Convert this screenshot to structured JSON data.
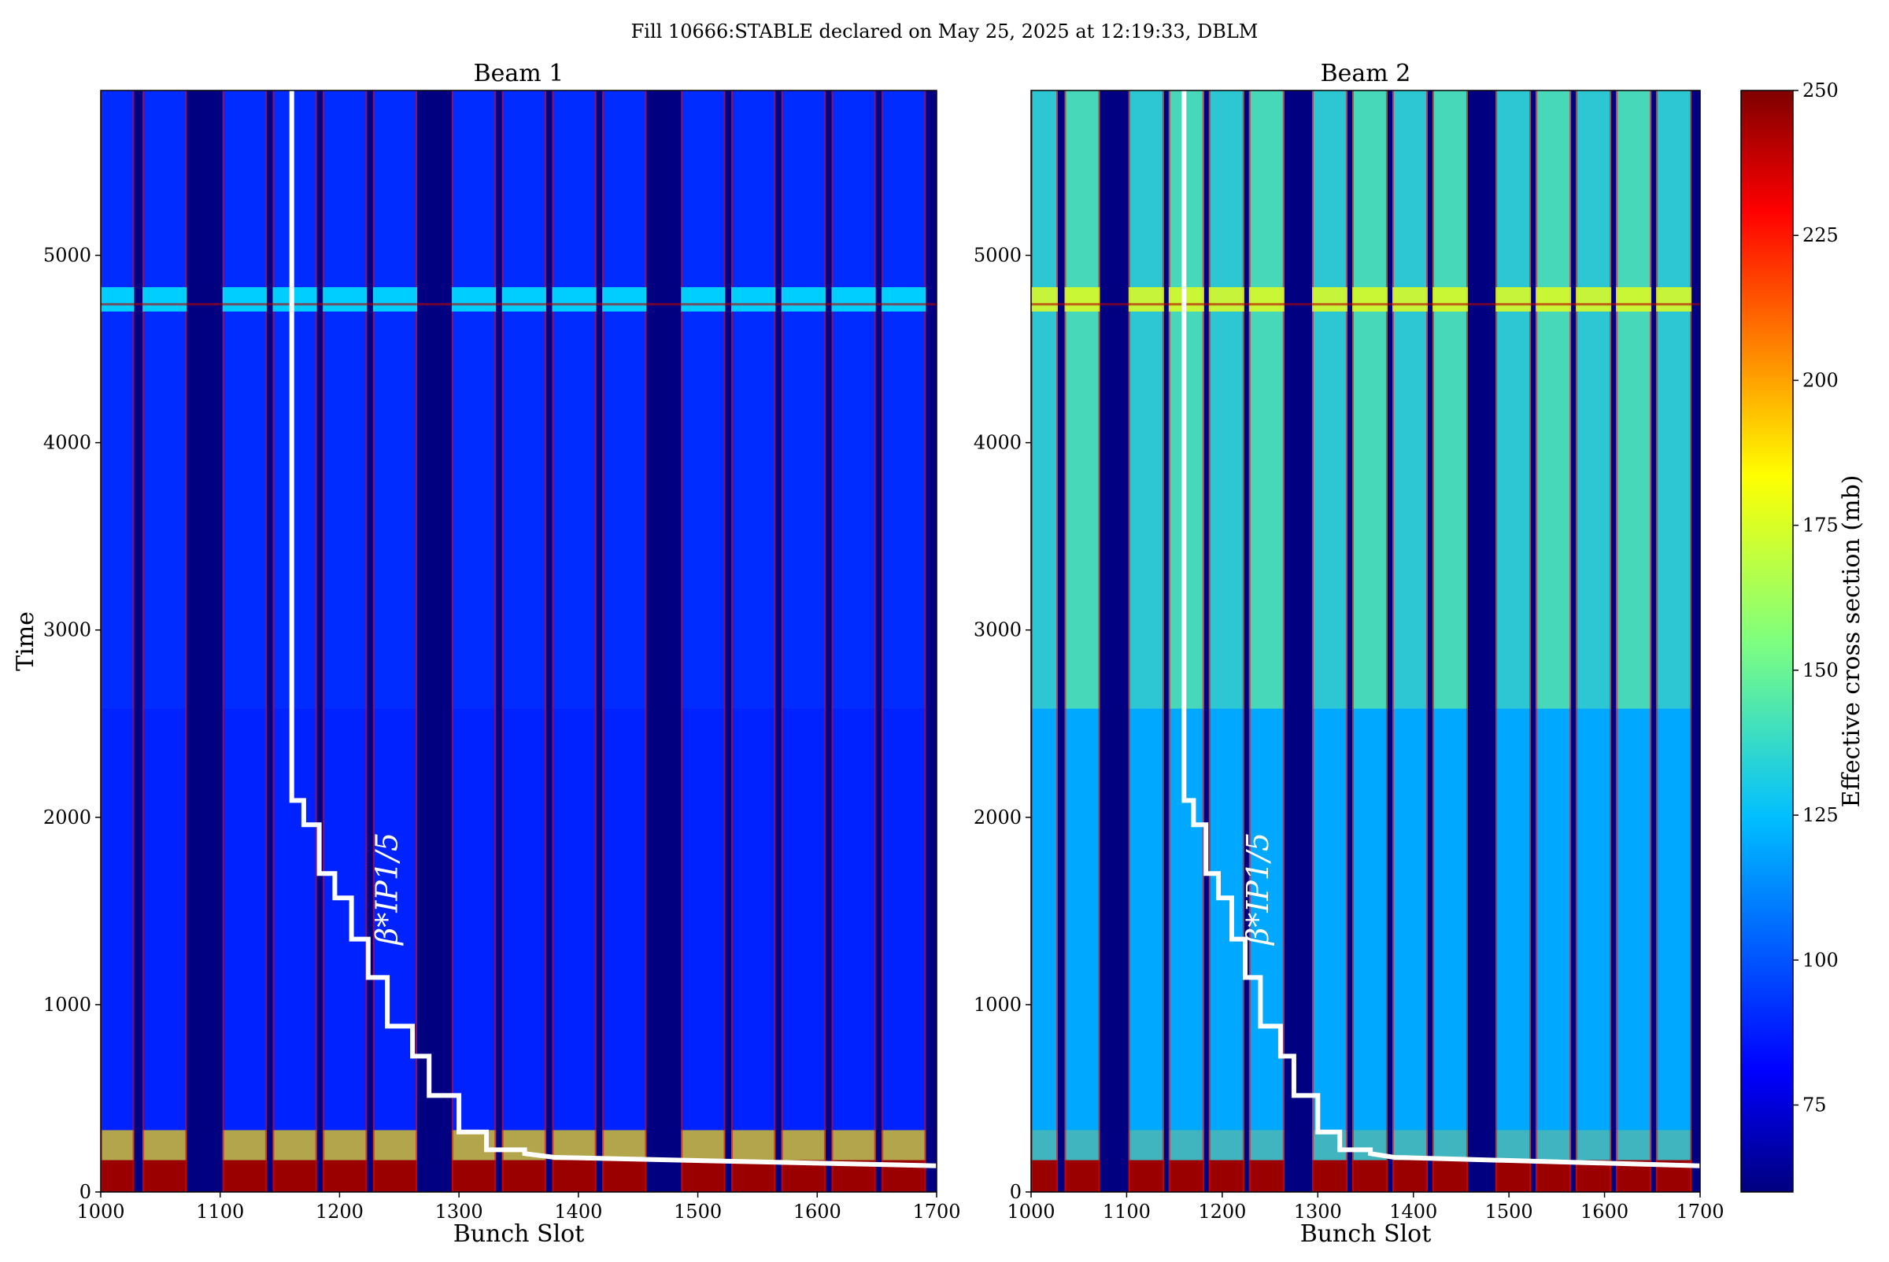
{
  "figure": {
    "suptitle": "Fill 10666:STABLE declared on May 25, 2025 at 12:19:33, DBLM"
  },
  "colorbar": {
    "label": "Effective cross section (mb)",
    "range": [
      60,
      250
    ],
    "ticks": [
      75,
      100,
      125,
      150,
      175,
      200,
      225,
      250
    ],
    "colormap": "jet"
  },
  "chart_data": [
    {
      "type": "heatmap",
      "title": "Beam 1",
      "xlabel": "Bunch Slot",
      "ylabel": "Time",
      "xlim": [
        1000,
        1700
      ],
      "ylim": [
        0,
        5880
      ],
      "xticks": [
        1000,
        1100,
        1200,
        1300,
        1400,
        1500,
        1600,
        1700
      ],
      "yticks": [
        0,
        1000,
        2000,
        3000,
        4000,
        5000
      ],
      "bunch_trains": [
        [
          1000,
          1028
        ],
        [
          1035,
          1072
        ],
        [
          1102,
          1139
        ],
        [
          1144,
          1181
        ],
        [
          1186,
          1223
        ],
        [
          1228,
          1265
        ],
        [
          1294,
          1331
        ],
        [
          1336,
          1373
        ],
        [
          1378,
          1415
        ],
        [
          1420,
          1457
        ],
        [
          1486,
          1523
        ],
        [
          1528,
          1565
        ],
        [
          1570,
          1607
        ],
        [
          1612,
          1649
        ],
        [
          1654,
          1691
        ]
      ],
      "typical_cross_section_mb": 90,
      "annotation": "β*IP1/5",
      "beta_star_curve": {
        "x": [
          1160,
          1160,
          1170,
          1170,
          1183,
          1183,
          1196,
          1196,
          1210,
          1210,
          1224,
          1224,
          1240,
          1240,
          1261,
          1261,
          1275,
          1275,
          1300,
          1300,
          1323,
          1323,
          1355,
          1355,
          1380,
          1700
        ],
        "y": [
          5880,
          2090,
          2090,
          1960,
          1960,
          1700,
          1700,
          1570,
          1570,
          1350,
          1350,
          1145,
          1145,
          885,
          885,
          725,
          725,
          515,
          515,
          320,
          320,
          225,
          225,
          205,
          185,
          140
        ]
      }
    },
    {
      "type": "heatmap",
      "title": "Beam 2",
      "xlabel": "Bunch Slot",
      "ylabel": "",
      "xlim": [
        1000,
        1700
      ],
      "ylim": [
        0,
        5880
      ],
      "xticks": [
        1000,
        1100,
        1200,
        1300,
        1400,
        1500,
        1600,
        1700
      ],
      "yticks": [
        0,
        1000,
        2000,
        3000,
        4000,
        5000
      ],
      "bunch_trains": [
        [
          1000,
          1028
        ],
        [
          1035,
          1072
        ],
        [
          1102,
          1139
        ],
        [
          1144,
          1181
        ],
        [
          1186,
          1223
        ],
        [
          1228,
          1265
        ],
        [
          1294,
          1331
        ],
        [
          1336,
          1373
        ],
        [
          1378,
          1415
        ],
        [
          1420,
          1457
        ],
        [
          1486,
          1523
        ],
        [
          1528,
          1565
        ],
        [
          1570,
          1607
        ],
        [
          1612,
          1649
        ],
        [
          1654,
          1691
        ]
      ],
      "typical_cross_section_mb": 115,
      "annotation": "β*IP1/5",
      "beta_star_curve": {
        "x": [
          1160,
          1160,
          1170,
          1170,
          1183,
          1183,
          1196,
          1196,
          1210,
          1210,
          1224,
          1224,
          1240,
          1240,
          1261,
          1261,
          1275,
          1275,
          1300,
          1300,
          1323,
          1323,
          1355,
          1355,
          1380,
          1700
        ],
        "y": [
          5880,
          2090,
          2090,
          1960,
          1960,
          1700,
          1700,
          1570,
          1570,
          1350,
          1350,
          1145,
          1145,
          885,
          885,
          725,
          725,
          515,
          515,
          320,
          320,
          225,
          225,
          205,
          185,
          140
        ]
      }
    }
  ]
}
